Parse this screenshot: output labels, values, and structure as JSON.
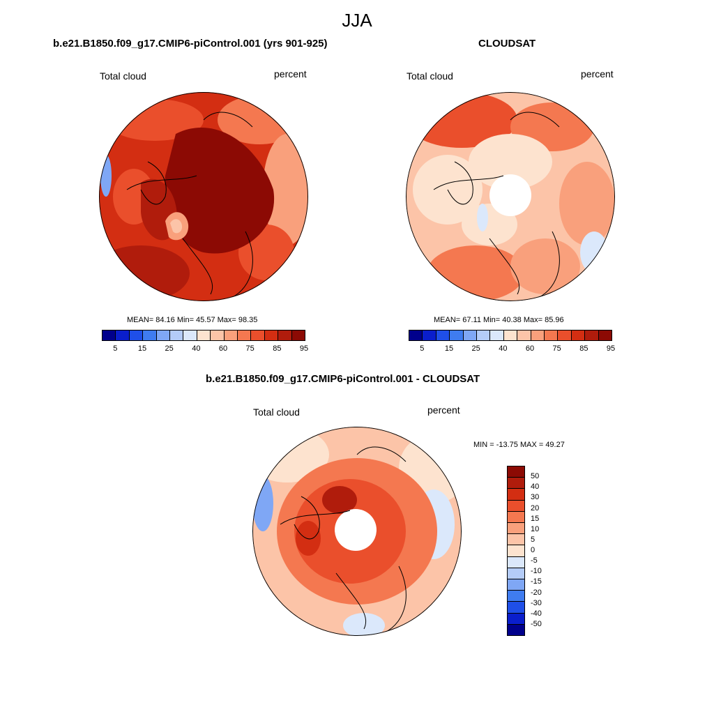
{
  "figure": {
    "title": "JJA"
  },
  "panels": [
    {
      "title": "b.e21.B1850.f09_g17.CMIP6-piControl.001 (yrs 901-925)",
      "variable": "Total cloud",
      "units": "percent",
      "stats": "MEAN=  84.16  Min=  45.57  Max=  98.35",
      "pole_mask": false,
      "palette": "abs"
    },
    {
      "title": "CLOUDSAT",
      "variable": "Total cloud",
      "units": "percent",
      "stats": "MEAN=  67.11  Min=  40.38  Max=  85.96",
      "pole_mask": true,
      "palette": "abs"
    },
    {
      "title": "b.e21.B1850.f09_g17.CMIP6-piControl.001 - CLOUDSAT",
      "variable": "Total cloud",
      "units": "percent",
      "stats": "MIN = -13.75 MAX =  49.27",
      "pole_mask": true,
      "palette": "diff"
    }
  ],
  "colorbars": {
    "abs": {
      "colors": [
        "#00008c",
        "#0a1ecc",
        "#1f4fe8",
        "#3f7cf0",
        "#7fa7f5",
        "#b4ccf8",
        "#dbe8fb",
        "#fde3cf",
        "#fcc4a8",
        "#f9a07c",
        "#f47850",
        "#ea4f2c",
        "#d32e12",
        "#b01c0c",
        "#8c0a04"
      ],
      "tick_labels": [
        "5",
        "15",
        "25",
        "40",
        "60",
        "75",
        "85",
        "95"
      ]
    },
    "diff": {
      "colors": [
        "#8c0a04",
        "#b01c0c",
        "#d32e12",
        "#ea4f2c",
        "#f47850",
        "#f9a07c",
        "#fcc4a8",
        "#fde3cf",
        "#dbe8fb",
        "#b4ccf8",
        "#7fa7f5",
        "#3f7cf0",
        "#1f4fe8",
        "#0a1ecc",
        "#00008c"
      ],
      "tick_labels": [
        "50",
        "40",
        "30",
        "20",
        "15",
        "10",
        "5",
        "0",
        "-5",
        "-10",
        "-15",
        "-20",
        "-30",
        "-40",
        "-50"
      ]
    }
  }
}
